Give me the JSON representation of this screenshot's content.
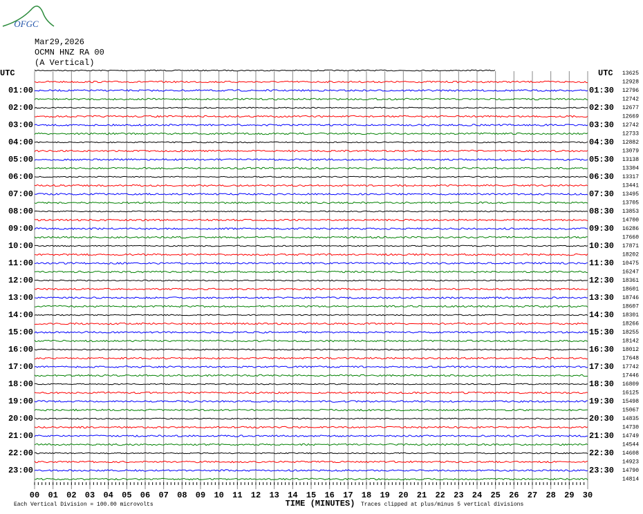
{
  "header": {
    "logo": "OFGC",
    "date": "Mar29,2026",
    "station": "OCMN HNZ RA 00",
    "component": "(A Vertical)"
  },
  "chart_data": {
    "type": "helicorder",
    "left_header": "UTC",
    "right_header": "UTC",
    "left_labels": [
      "01:00",
      "02:00",
      "03:00",
      "04:00",
      "05:00",
      "06:00",
      "07:00",
      "08:00",
      "09:00",
      "10:00",
      "11:00",
      "12:00",
      "13:00",
      "14:00",
      "15:00",
      "16:00",
      "17:00",
      "18:00",
      "19:00",
      "20:00",
      "21:00",
      "22:00",
      "23:00"
    ],
    "right_labels": [
      "01:30",
      "02:30",
      "03:30",
      "04:30",
      "05:30",
      "06:30",
      "07:30",
      "08:30",
      "09:30",
      "10:30",
      "11:30",
      "12:30",
      "13:30",
      "14:30",
      "15:30",
      "16:30",
      "17:30",
      "18:30",
      "19:30",
      "20:30",
      "21:30",
      "22:30",
      "23:30"
    ],
    "row_values": [
      13625,
      12928,
      12796,
      12742,
      12677,
      12669,
      12742,
      12733,
      12882,
      13079,
      13138,
      13304,
      13317,
      13441,
      13495,
      13705,
      13853,
      14700,
      16286,
      17660,
      17871,
      18202,
      10475,
      16247,
      18361,
      18601,
      18746,
      18607,
      18301,
      18266,
      18255,
      18142,
      18012,
      17648,
      17742,
      17446,
      16809,
      16125,
      15498,
      15067,
      14835,
      14730,
      14749,
      14544,
      14608,
      14923,
      14790,
      14814
    ],
    "trace_colors": [
      "#000000",
      "#ff0000",
      "#0000ff",
      "#008000"
    ],
    "x_label": "TIME (MINUTES)",
    "xlim": [
      0,
      30
    ],
    "xticks": [
      {
        "value": 0,
        "label": "00"
      },
      {
        "value": 1,
        "label": "01"
      },
      {
        "value": 2,
        "label": "02"
      },
      {
        "value": 3,
        "label": "03"
      },
      {
        "value": 4,
        "label": "04"
      },
      {
        "value": 5,
        "label": "05"
      },
      {
        "value": 6,
        "label": "06"
      },
      {
        "value": 7,
        "label": "07"
      },
      {
        "value": 8,
        "label": "08"
      },
      {
        "value": 9,
        "label": "09"
      },
      10,
      11,
      12,
      13,
      14,
      15,
      16,
      17,
      18,
      19,
      20,
      21,
      22,
      23,
      24,
      25,
      26,
      27,
      28,
      29,
      30
    ],
    "footer_left": "Each Vertical Division =  100.00 microvolts",
    "footer_right": "Traces clipped at plus/minus 5 vertical divisions"
  }
}
